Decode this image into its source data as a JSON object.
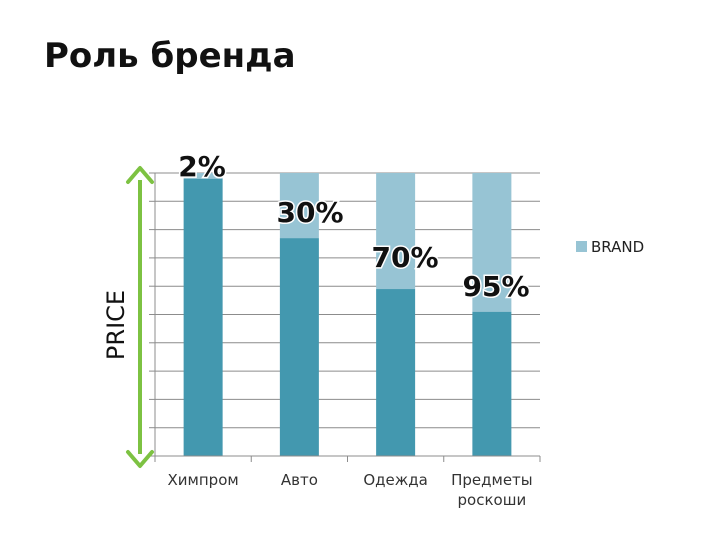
{
  "title": "Роль бренда",
  "chart_data": {
    "type": "bar",
    "stacked": true,
    "categories": [
      "Химпром",
      "Авто",
      "Одежда",
      "Предметы роскоши"
    ],
    "category_lines": [
      [
        "Химпром"
      ],
      [
        "Авто"
      ],
      [
        "Одежда"
      ],
      [
        "Предметы",
        "роскоши"
      ]
    ],
    "series": [
      {
        "name": "",
        "values": [
          98,
          77,
          59,
          51
        ],
        "color": "#4398AF"
      },
      {
        "name": "BRAND",
        "values": [
          2,
          23,
          41,
          49
        ],
        "color": "#97C4D4"
      }
    ],
    "data_labels": [
      "2%",
      "30%",
      "70%",
      "95%"
    ],
    "ylabel": "PRICE",
    "ylim": [
      0,
      100
    ],
    "grid": true,
    "legend": "right",
    "arrow_color": "#7DC242"
  }
}
